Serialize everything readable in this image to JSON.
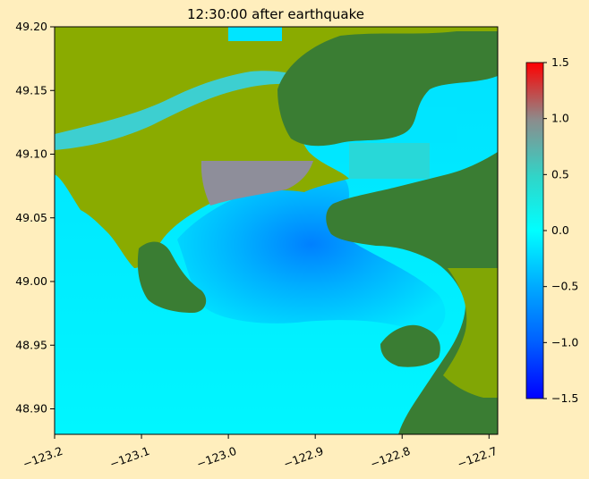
{
  "chart_data": {
    "type": "heatmap",
    "title": "12:30:00 after earthquake",
    "xlabel": "",
    "ylabel": "",
    "xlim": [
      -123.2,
      -122.69
    ],
    "ylim": [
      48.88,
      49.2
    ],
    "x_ticks": [
      -123.2,
      -123.1,
      -123.0,
      -122.9,
      -122.8,
      -122.7
    ],
    "x_tick_labels": [
      "−123.2",
      "−123.1",
      "−123.0",
      "−122.9",
      "−122.8",
      "−122.7"
    ],
    "y_ticks": [
      48.9,
      48.95,
      49.0,
      49.05,
      49.1,
      49.15,
      49.2
    ],
    "y_tick_labels": [
      "48.90",
      "48.95",
      "49.00",
      "49.05",
      "49.10",
      "49.15",
      "49.20"
    ],
    "colorbar": {
      "range": [
        -1.5,
        1.5
      ],
      "ticks": [
        -1.5,
        -1.0,
        -0.5,
        0.0,
        0.5,
        1.0,
        1.5
      ],
      "tick_labels": [
        "−1.5",
        "−1.0",
        "−0.5",
        "0.0",
        "0.5",
        "1.0",
        "1.5"
      ],
      "colors": [
        "#0000ff",
        "#00a8ff",
        "#00ffff",
        "#30d5c8",
        "#8c8c8c",
        "#ff0000"
      ]
    },
    "land_colors": {
      "lowland": "#8aab00",
      "highland": "#3a7d33"
    },
    "grid": false
  }
}
